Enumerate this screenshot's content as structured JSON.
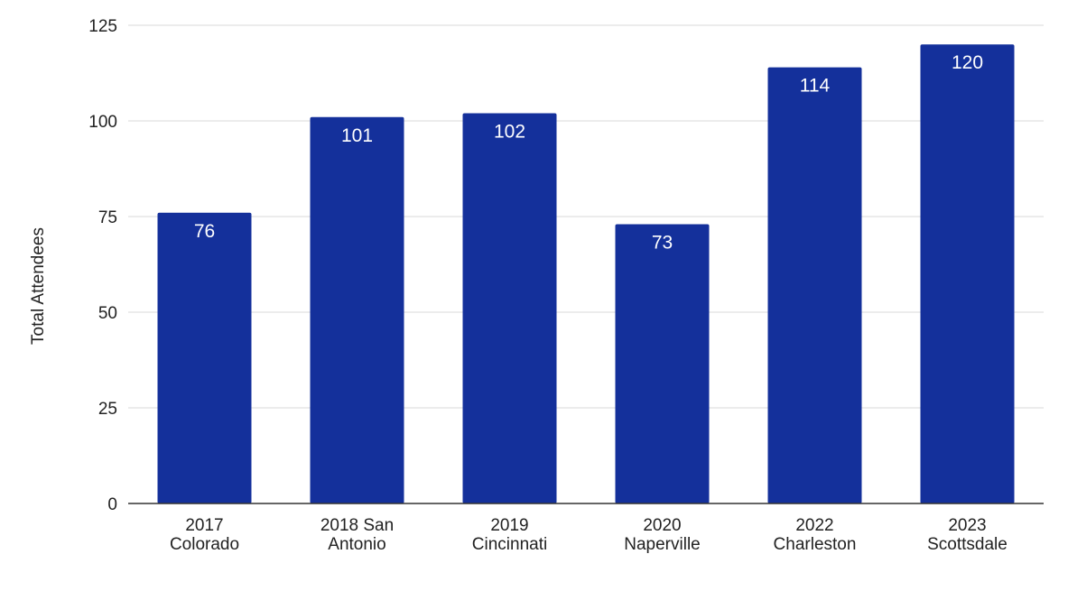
{
  "chart_data": {
    "type": "bar",
    "title": "",
    "xlabel": "",
    "ylabel": "Total Attendees",
    "categories": [
      [
        "2017",
        "Colorado"
      ],
      [
        "2018 San",
        "Antonio"
      ],
      [
        "2019",
        "Cincinnati"
      ],
      [
        "2020",
        "Naperville"
      ],
      [
        "2022",
        "Charleston"
      ],
      [
        "2023",
        "Scottsdale"
      ]
    ],
    "values": [
      76,
      101,
      102,
      73,
      114,
      120
    ],
    "ylim": [
      0,
      125
    ],
    "yticks": [
      0,
      25,
      50,
      75,
      100,
      125
    ],
    "grid": true,
    "legend": "none",
    "bar_color": "#14309b",
    "label_color": "#ffffff"
  }
}
